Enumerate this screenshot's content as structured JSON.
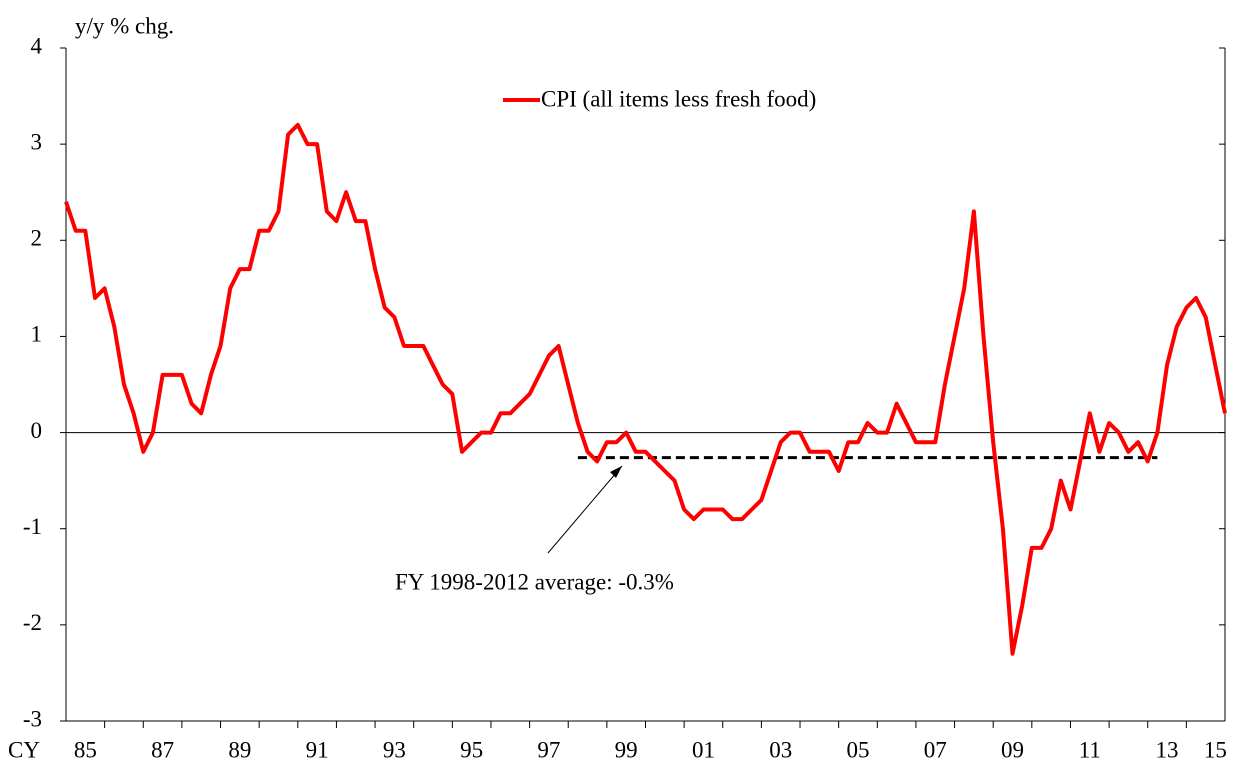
{
  "chart_data": {
    "type": "line",
    "ylabel": "y/y % chg.",
    "xlabel": "CY",
    "x": [
      1985,
      1985.25,
      1985.5,
      1985.75,
      1986,
      1986.25,
      1986.5,
      1986.75,
      1987,
      1987.25,
      1987.5,
      1987.75,
      1988,
      1988.25,
      1988.5,
      1988.75,
      1989,
      1989.25,
      1989.5,
      1989.75,
      1990,
      1990.25,
      1990.5,
      1990.75,
      1991,
      1991.25,
      1991.5,
      1991.75,
      1992,
      1992.25,
      1992.5,
      1992.75,
      1993,
      1993.25,
      1993.5,
      1993.75,
      1994,
      1994.25,
      1994.5,
      1994.75,
      1995,
      1995.25,
      1995.5,
      1995.75,
      1996,
      1996.25,
      1996.5,
      1996.75,
      1997,
      1997.25,
      1997.5,
      1997.75,
      1998,
      1998.25,
      1998.5,
      1998.75,
      1999,
      1999.25,
      1999.5,
      1999.75,
      2000,
      2000.25,
      2000.5,
      2000.75,
      2001,
      2001.25,
      2001.5,
      2001.75,
      2002,
      2002.25,
      2002.5,
      2002.75,
      2003,
      2003.25,
      2003.5,
      2003.75,
      2004,
      2004.25,
      2004.5,
      2004.75,
      2005,
      2005.25,
      2005.5,
      2005.75,
      2006,
      2006.25,
      2006.5,
      2006.75,
      2007,
      2007.25,
      2007.5,
      2007.75,
      2008,
      2008.25,
      2008.5,
      2008.75,
      2009,
      2009.25,
      2009.5,
      2009.75,
      2010,
      2010.25,
      2010.5,
      2010.75,
      2011,
      2011.25,
      2011.5,
      2011.75,
      2012,
      2012.25,
      2012.5,
      2012.75,
      2013,
      2013.25,
      2013.5,
      2013.75,
      2014,
      2014.25,
      2014.5,
      2014.75,
      2015
    ],
    "series": [
      {
        "name": "CPI (all items less fresh food)",
        "color": "#ff0000",
        "values": [
          2.4,
          2.1,
          2.1,
          1.4,
          1.5,
          1.1,
          0.5,
          0.2,
          -0.2,
          0.0,
          0.6,
          0.6,
          0.6,
          0.3,
          0.2,
          0.6,
          0.9,
          1.5,
          1.7,
          1.7,
          2.1,
          2.1,
          2.3,
          3.1,
          3.2,
          3.0,
          3.0,
          2.3,
          2.2,
          2.5,
          2.2,
          2.2,
          1.7,
          1.3,
          1.2,
          0.9,
          0.9,
          0.9,
          0.7,
          0.5,
          0.4,
          -0.2,
          -0.1,
          0.0,
          0.0,
          0.2,
          0.2,
          0.3,
          0.4,
          0.6,
          0.8,
          0.9,
          0.5,
          0.1,
          -0.2,
          -0.3,
          -0.1,
          -0.1,
          0.0,
          -0.2,
          -0.2,
          -0.3,
          -0.4,
          -0.5,
          -0.8,
          -0.9,
          -0.8,
          -0.8,
          -0.8,
          -0.9,
          -0.9,
          -0.8,
          -0.7,
          -0.4,
          -0.1,
          0.0,
          0.0,
          -0.2,
          -0.2,
          -0.2,
          -0.4,
          -0.1,
          -0.1,
          0.1,
          0.0,
          0.0,
          0.3,
          0.1,
          -0.1,
          -0.1,
          -0.1,
          0.5,
          1.0,
          1.5,
          2.3,
          1.0,
          -0.1,
          -1.0,
          -2.3,
          -1.8,
          -1.2,
          -1.2,
          -1.0,
          -0.5,
          -0.8,
          -0.3,
          0.2,
          -0.2,
          0.1,
          0.0,
          -0.2,
          -0.1,
          -0.3,
          0.0,
          0.7,
          1.1,
          1.3,
          1.4,
          1.2,
          0.7,
          0.2
        ]
      }
    ],
    "average_line": {
      "x": [
        1998.25,
        2013.25
      ],
      "value": -0.26
    },
    "annotation": "FY 1998-2012 average: -0.3%",
    "xlim": [
      1985,
      2015
    ],
    "xticks": [
      {
        "value": 1985.5,
        "label": "85"
      },
      {
        "value": 1987.5,
        "label": "87"
      },
      {
        "value": 1989.5,
        "label": "89"
      },
      {
        "value": 1991.5,
        "label": "91"
      },
      {
        "value": 1993.5,
        "label": "93"
      },
      {
        "value": 1995.5,
        "label": "95"
      },
      {
        "value": 1997.5,
        "label": "97"
      },
      {
        "value": 1999.5,
        "label": "99"
      },
      {
        "value": 2001.5,
        "label": "01"
      },
      {
        "value": 2003.5,
        "label": "03"
      },
      {
        "value": 2005.5,
        "label": "05"
      },
      {
        "value": 2007.5,
        "label": "07"
      },
      {
        "value": 2009.5,
        "label": "09"
      },
      {
        "value": 2011.5,
        "label": "11"
      },
      {
        "value": 2013.5,
        "label": "13"
      },
      {
        "value": 2014.75,
        "label": "15"
      }
    ],
    "xtick_marks": [
      1986,
      1987,
      1988,
      1989,
      1990,
      1991,
      1992,
      1993,
      1994,
      1995,
      1996,
      1997,
      1998,
      1999,
      2000,
      2001,
      2002,
      2003,
      2004,
      2005,
      2006,
      2007,
      2008,
      2009,
      2010,
      2011,
      2012,
      2013,
      2014
    ],
    "ylim": [
      -3,
      4
    ],
    "yticks": [
      -3,
      -2,
      -1,
      0,
      1,
      2,
      3,
      4
    ],
    "legend": "top"
  }
}
